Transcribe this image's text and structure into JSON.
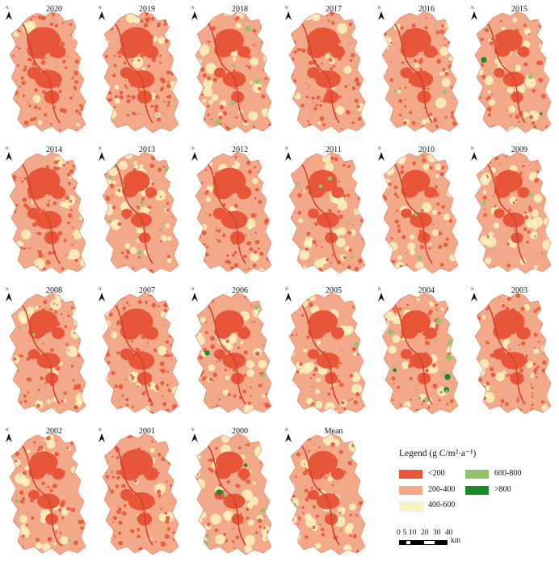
{
  "panels": [
    {
      "title": "2020",
      "shade": 0.9,
      "green": 0.0
    },
    {
      "title": "2019",
      "shade": 0.85,
      "green": 0.0
    },
    {
      "title": "2018",
      "shade": 0.6,
      "green": 0.25
    },
    {
      "title": "2017",
      "shade": 0.8,
      "green": 0.0
    },
    {
      "title": "2016",
      "shade": 0.7,
      "green": 0.1
    },
    {
      "title": "2015",
      "shade": 0.5,
      "green": 0.35
    },
    {
      "title": "2014",
      "shade": 0.85,
      "green": 0.0
    },
    {
      "title": "2013",
      "shade": 0.45,
      "green": 0.3
    },
    {
      "title": "2012",
      "shade": 0.85,
      "green": 0.0
    },
    {
      "title": "2011",
      "shade": 0.55,
      "green": 0.15
    },
    {
      "title": "2010",
      "shade": 0.55,
      "green": 0.05
    },
    {
      "title": "2009",
      "shade": 0.5,
      "green": 0.05
    },
    {
      "title": "2008",
      "shade": 0.6,
      "green": 0.1
    },
    {
      "title": "2007",
      "shade": 0.85,
      "green": 0.0
    },
    {
      "title": "2006",
      "shade": 0.6,
      "green": 0.25
    },
    {
      "title": "2005",
      "shade": 0.6,
      "green": 0.1
    },
    {
      "title": "2004",
      "shade": 0.6,
      "green": 0.5
    },
    {
      "title": "2003",
      "shade": 0.75,
      "green": 0.0
    },
    {
      "title": "2002",
      "shade": 0.55,
      "green": 0.05
    },
    {
      "title": "2001",
      "shade": 0.85,
      "green": 0.0
    },
    {
      "title": "2000",
      "shade": 0.5,
      "green": 0.3
    },
    {
      "title": "Mean",
      "shade": 0.6,
      "green": 0.05
    }
  ],
  "north_label": "N",
  "legend": {
    "title": "Legend (g C/m²·a⁻¹)",
    "items": [
      {
        "label": "<200",
        "color": "#e8563a"
      },
      {
        "label": "200-400",
        "color": "#f2a98a"
      },
      {
        "label": "400-600",
        "color": "#fbf3bd"
      },
      {
        "label": "600-800",
        "color": "#8fc46a"
      },
      {
        "label": ">800",
        "color": "#1b8a2a"
      }
    ]
  },
  "scale": {
    "ticks": [
      "0",
      "5",
      "10",
      "20",
      "30",
      "40"
    ],
    "tick_values": [
      0,
      5,
      10,
      20,
      30,
      40
    ],
    "unit": "km"
  }
}
